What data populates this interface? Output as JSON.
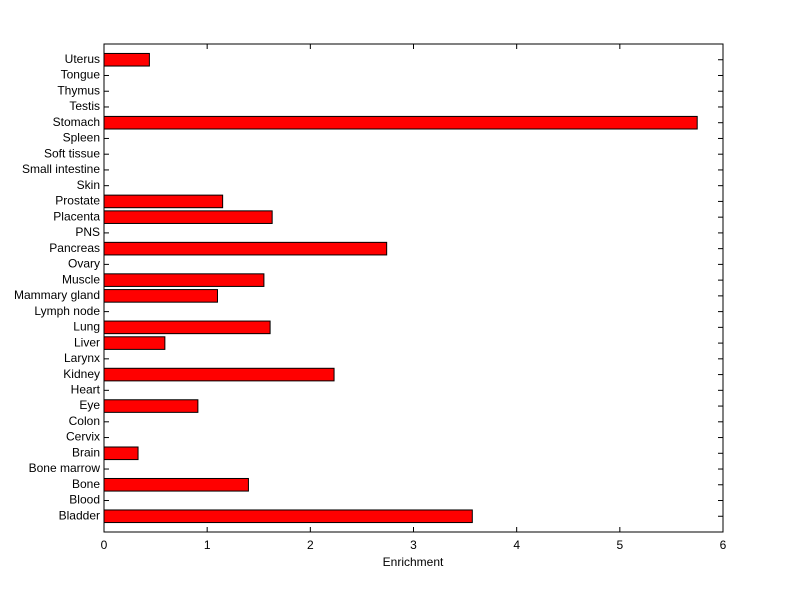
{
  "chart_data": {
    "type": "barh",
    "xlabel": "Enrichment",
    "categories": [
      "Bladder",
      "Blood",
      "Bone",
      "Bone marrow",
      "Brain",
      "Cervix",
      "Colon",
      "Eye",
      "Heart",
      "Kidney",
      "Larynx",
      "Liver",
      "Lung",
      "Lymph node",
      "Mammary gland",
      "Muscle",
      "Ovary",
      "Pancreas",
      "PNS",
      "Placenta",
      "Prostate",
      "Skin",
      "Small intestine",
      "Soft tissue",
      "Spleen",
      "Stomach",
      "Testis",
      "Thymus",
      "Tongue",
      "Uterus"
    ],
    "values": [
      3.57,
      0,
      1.4,
      0,
      0.33,
      0,
      0,
      0.91,
      0,
      2.23,
      0,
      0.59,
      1.61,
      0,
      1.1,
      1.55,
      0,
      2.74,
      0,
      1.63,
      1.15,
      0,
      0,
      0,
      0,
      5.75,
      0,
      0,
      0,
      0.44
    ],
    "color": "#ff0000",
    "xlim": [
      0,
      6
    ],
    "xticks": [
      0,
      1,
      2,
      3,
      4,
      5,
      6
    ]
  }
}
